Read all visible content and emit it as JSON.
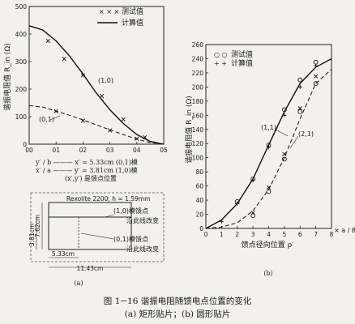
{
  "chart_data": [
    {
      "type": "line",
      "ylabel": "谐振电阻值 R_in (Ω)",
      "xlim": [
        0,
        0.5
      ],
      "ylim": [
        0,
        500
      ],
      "xticks": [
        "00",
        "01",
        "02",
        "03",
        "04",
        "05"
      ],
      "yticks": [
        "0",
        "100",
        "200",
        "300",
        "400",
        "500"
      ],
      "legend": {
        "measured": "测试值",
        "calculated": "计算值",
        "placement": "top-right"
      },
      "curve_labels": [
        "(1,0)",
        "(0,1)"
      ],
      "xlabel_lines": [
        "y′ / b ——— x′ = 5.33cm    (0,1)模",
        "x′ / a ——— y′ = 3.81cm    (1,0)模",
        "(x′,y′) 是馈点位置"
      ],
      "series": [
        {
          "name": "(1,0)",
          "kind": "calculated",
          "x": [
            0,
            0.05,
            0.1,
            0.15,
            0.2,
            0.25,
            0.3,
            0.35,
            0.4,
            0.45,
            0.5
          ],
          "y": [
            430,
            415,
            375,
            320,
            255,
            185,
            125,
            75,
            35,
            10,
            0
          ]
        },
        {
          "name": "(1,0)",
          "kind": "measured",
          "x": [
            0.07,
            0.13,
            0.2,
            0.27,
            0.35,
            0.43
          ],
          "y": [
            375,
            310,
            250,
            175,
            90,
            25
          ]
        },
        {
          "name": "(0,1)",
          "kind": "calculated",
          "x": [
            0,
            0.05,
            0.1,
            0.15,
            0.2,
            0.25,
            0.3,
            0.35,
            0.4,
            0.45,
            0.5
          ],
          "y": [
            140,
            135,
            120,
            105,
            88,
            70,
            52,
            35,
            18,
            6,
            0
          ]
        },
        {
          "name": "(0,1)",
          "kind": "measured",
          "x": [
            0.1,
            0.2,
            0.3,
            0.4
          ],
          "y": [
            120,
            85,
            50,
            20
          ]
        }
      ]
    },
    {
      "type": "line",
      "ylabel": "谐振电阻值 R_in (Ω)",
      "xlabel": "馈点径向位置 ρ′",
      "x_unit": "× a / 8",
      "xlim": [
        0,
        8
      ],
      "ylim": [
        0,
        260
      ],
      "xticks": [
        "0",
        "1",
        "2",
        "3",
        "4",
        "5",
        "6",
        "7",
        "8"
      ],
      "yticks": [
        "0",
        "20",
        "40",
        "60",
        "80",
        "100",
        "120",
        "140",
        "160",
        "180",
        "200",
        "220",
        "240",
        "260"
      ],
      "legend": {
        "measured": "测试值",
        "calculated": "计算值",
        "placement": "top-left"
      },
      "series": [
        {
          "name": "(1,1)",
          "kind": "calculated",
          "x": [
            0,
            1,
            2,
            3,
            4,
            5,
            6,
            7,
            8
          ],
          "y": [
            0,
            12,
            35,
            70,
            118,
            165,
            205,
            228,
            240
          ]
        },
        {
          "name": "(2,1)",
          "kind": "calculated",
          "x": [
            0,
            1,
            2,
            3,
            4,
            5,
            6,
            7,
            8
          ],
          "y": [
            0,
            2,
            8,
            25,
            55,
            100,
            155,
            205,
            225
          ]
        },
        {
          "name": "(1,1)",
          "kind": "measured",
          "marker": "o",
          "x": [
            2,
            3,
            4,
            5,
            6,
            7
          ],
          "y": [
            38,
            70,
            118,
            168,
            210,
            235
          ]
        },
        {
          "name": "(2,1)",
          "kind": "measured",
          "marker": "o",
          "x": [
            3,
            4,
            5,
            6,
            7
          ],
          "y": [
            18,
            52,
            98,
            165,
            205
          ]
        },
        {
          "name": "(1,1)",
          "kind": "measured",
          "marker": "+",
          "x": [
            1,
            2,
            3,
            4,
            5,
            6,
            7
          ],
          "y": [
            10,
            35,
            68,
            115,
            160,
            200,
            230
          ]
        },
        {
          "name": "(2,1)",
          "kind": "measured",
          "marker": "x",
          "x": [
            3,
            4,
            5,
            6,
            7
          ],
          "y": [
            22,
            58,
            105,
            170,
            215
          ]
        }
      ]
    }
  ],
  "patch": {
    "material": "Rexolite 2200; h = 1.59mm",
    "label_10_a": "(1,0)模馈点",
    "label_10_b": "沿此线改变",
    "label_01_a": "(0,1)模馈点",
    "label_01_b": "沿此线改变",
    "dim_h": "7.62cm",
    "dim_y": "3.81cm",
    "dim_x": "5.33cm",
    "dim_w": "11.43cm"
  },
  "sublabel_a": "(a)",
  "sublabel_b": "(b)",
  "caption": "图 1−16   谐振电阻随馈电点位置的变化",
  "subcaption": "(a) 矩形贴片；(b) 圆形贴片"
}
